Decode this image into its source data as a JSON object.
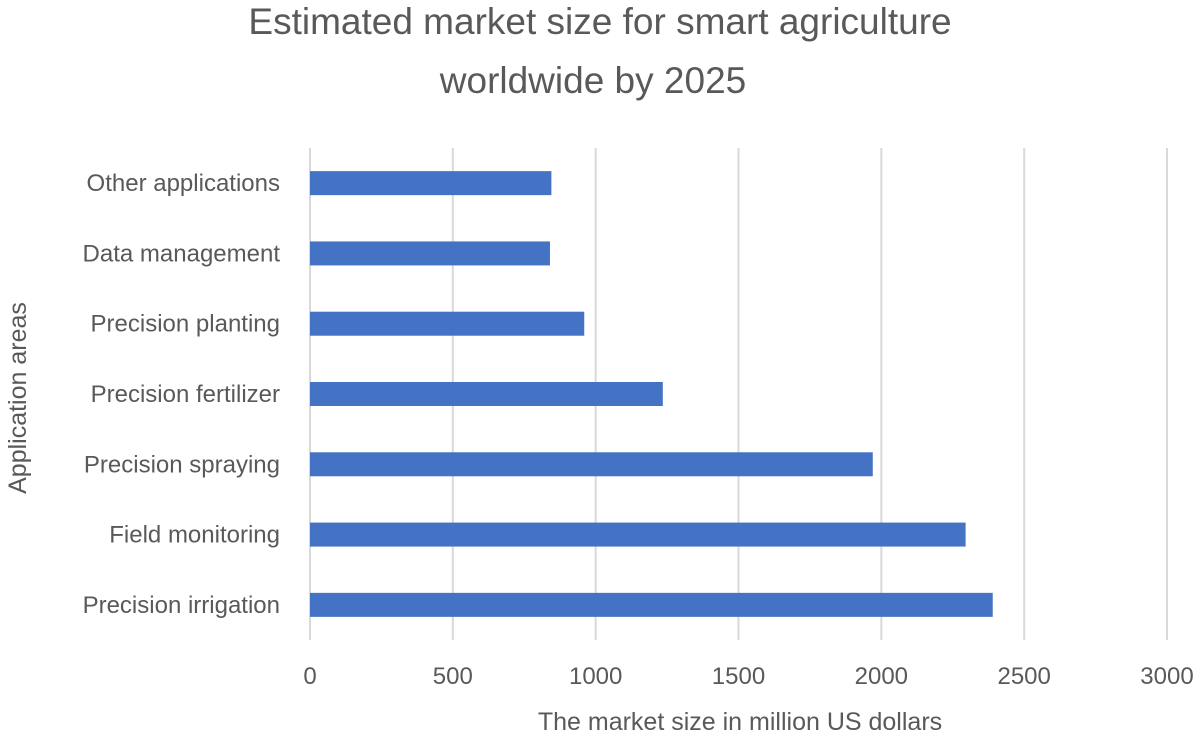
{
  "chart_data": {
    "type": "bar",
    "orientation": "horizontal",
    "title": "Estimated market size for smart agriculture worldwide by 2025",
    "title_lines": [
      "Estimated market size for smart agriculture",
      "worldwide by 2025"
    ],
    "xlabel": "The market size in million US dollars",
    "ylabel": "Application areas",
    "categories": [
      "Precision irrigation",
      "Field monitoring",
      "Precision spraying",
      "Precision fertilizer",
      "Precision planting",
      "Data management",
      "Other applications"
    ],
    "values": [
      2390,
      2295,
      1970,
      1235,
      960,
      840,
      845
    ],
    "xlim": [
      0,
      3000
    ],
    "xticks": [
      "0",
      "500",
      "1000",
      "1500",
      "2000",
      "2500",
      "3000"
    ],
    "grid": true,
    "legend": "none",
    "bar_color": "#4472C4",
    "grid_color": "#D9D9D9"
  }
}
